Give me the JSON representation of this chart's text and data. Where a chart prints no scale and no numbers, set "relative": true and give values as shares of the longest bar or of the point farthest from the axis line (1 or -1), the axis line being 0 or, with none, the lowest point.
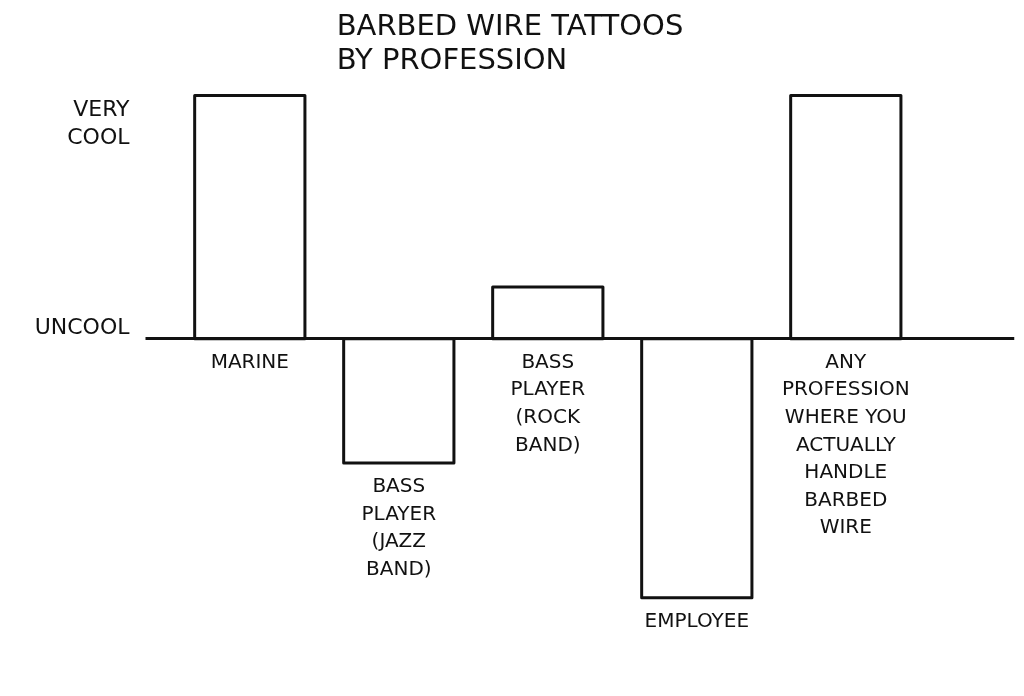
{
  "chart_data": {
    "type": "bar",
    "title": "BARBED WIRE TATTOOS BY PROFESSION",
    "categories": [
      "MARINE",
      "BASS PLAYER (JAZZ BAND)",
      "BASS PLAYER (ROCK BAND)",
      "EMPLOYEE",
      "ANY PROFESSION WHERE YOU ACTUALLY HANDLE BARBED WIRE"
    ],
    "values": [
      0.94,
      -0.48,
      0.2,
      -1,
      0.94
    ],
    "color": "#ffffff",
    "relative": true,
    "annotations": [
      "VERY COOL",
      "UNCOOL"
    ]
  }
}
